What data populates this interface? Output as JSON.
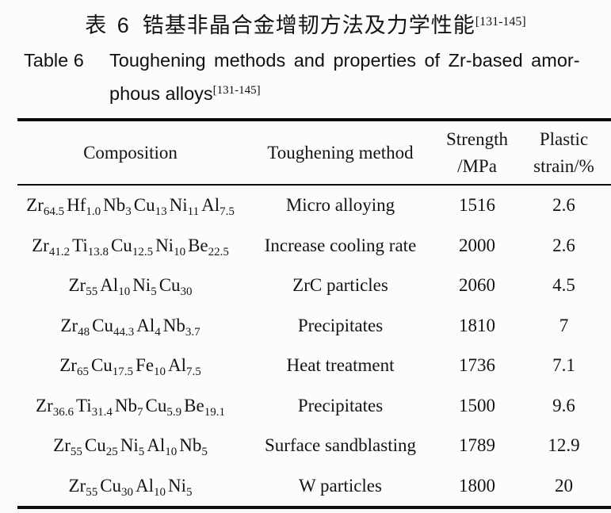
{
  "caption_zh": {
    "label": "表 6",
    "title": "锆基非晶合金增韧方法及力学性能",
    "ref": "[131-145]"
  },
  "caption_en": {
    "label": "Table 6",
    "line1": "Toughening methods and properties of Zr-based amor-",
    "line2": "phous alloys",
    "ref": "[131-145]"
  },
  "table": {
    "headers": {
      "composition": "Composition",
      "method": "Toughening method",
      "strength": [
        "Strength",
        "/MPa"
      ],
      "plastic": [
        "Plastic",
        "strain/%"
      ]
    },
    "rows": [
      {
        "composition": [
          {
            "el": "Zr",
            "sub": "64.5"
          },
          {
            "el": "Hf",
            "sub": "1.0"
          },
          {
            "el": "Nb",
            "sub": "3"
          },
          {
            "el": "Cu",
            "sub": "13"
          },
          {
            "el": "Ni",
            "sub": "11"
          },
          {
            "el": "Al",
            "sub": "7.5"
          }
        ],
        "method": "Micro alloying",
        "strength": "1516",
        "plastic": "2.6"
      },
      {
        "composition": [
          {
            "el": "Zr",
            "sub": "41.2"
          },
          {
            "el": "Ti",
            "sub": "13.8"
          },
          {
            "el": "Cu",
            "sub": "12.5"
          },
          {
            "el": "Ni",
            "sub": "10"
          },
          {
            "el": "Be",
            "sub": "22.5"
          }
        ],
        "method": "Increase cooling rate",
        "strength": "2000",
        "plastic": "2.6"
      },
      {
        "composition": [
          {
            "el": "Zr",
            "sub": "55"
          },
          {
            "el": "Al",
            "sub": "10"
          },
          {
            "el": "Ni",
            "sub": "5"
          },
          {
            "el": "Cu",
            "sub": "30"
          }
        ],
        "method": "ZrC particles",
        "strength": "2060",
        "plastic": "4.5"
      },
      {
        "composition": [
          {
            "el": "Zr",
            "sub": "48"
          },
          {
            "el": "Cu",
            "sub": "44.3"
          },
          {
            "el": "Al",
            "sub": "4"
          },
          {
            "el": "Nb",
            "sub": "3.7"
          }
        ],
        "method": "Precipitates",
        "strength": "1810",
        "plastic": "7"
      },
      {
        "composition": [
          {
            "el": "Zr",
            "sub": "65"
          },
          {
            "el": "Cu",
            "sub": "17.5"
          },
          {
            "el": "Fe",
            "sub": "10"
          },
          {
            "el": "Al",
            "sub": "7.5"
          }
        ],
        "method": "Heat treatment",
        "strength": "1736",
        "plastic": "7.1"
      },
      {
        "composition": [
          {
            "el": "Zr",
            "sub": "36.6"
          },
          {
            "el": "Ti",
            "sub": "31.4"
          },
          {
            "el": "Nb",
            "sub": "7"
          },
          {
            "el": "Cu",
            "sub": "5.9"
          },
          {
            "el": "Be",
            "sub": "19.1"
          }
        ],
        "method": "Precipitates",
        "strength": "1500",
        "plastic": "9.6"
      },
      {
        "composition": [
          {
            "el": "Zr",
            "sub": "55"
          },
          {
            "el": "Cu",
            "sub": "25"
          },
          {
            "el": "Ni",
            "sub": "5"
          },
          {
            "el": "Al",
            "sub": "10"
          },
          {
            "el": "Nb",
            "sub": "5"
          }
        ],
        "method": "Surface sandblasting",
        "strength": "1789",
        "plastic": "12.9"
      },
      {
        "composition": [
          {
            "el": "Zr",
            "sub": "55"
          },
          {
            "el": "Cu",
            "sub": "30"
          },
          {
            "el": "Al",
            "sub": "10"
          },
          {
            "el": "Ni",
            "sub": "5"
          }
        ],
        "method": "W particles",
        "strength": "1800",
        "plastic": "20"
      }
    ]
  },
  "chart_data": {
    "type": "table",
    "title": "Toughening methods and properties of Zr-based amorphous alloys",
    "columns": [
      "Composition",
      "Toughening method",
      "Strength /MPa",
      "Plastic strain/%"
    ],
    "compositions": [
      "Zr64.5Hf1.0Nb3Cu13Ni11Al7.5",
      "Zr41.2Ti13.8Cu12.5Ni10Be22.5",
      "Zr55Al10Ni5Cu30",
      "Zr48Cu44.3Al4Nb3.7",
      "Zr65Cu17.5Fe10Al7.5",
      "Zr36.6Ti31.4Nb7Cu5.9Be19.1",
      "Zr55Cu25Ni5Al10Nb5",
      "Zr55Cu30Al10Ni5"
    ],
    "methods": [
      "Micro alloying",
      "Increase cooling rate",
      "ZrC particles",
      "Precipitates",
      "Heat treatment",
      "Precipitates",
      "Surface sandblasting",
      "W particles"
    ],
    "strength_MPa": [
      1516,
      2000,
      2060,
      1810,
      1736,
      1500,
      1789,
      1800
    ],
    "plastic_strain_pct": [
      2.6,
      2.6,
      4.5,
      7,
      7.1,
      9.6,
      12.9,
      20
    ]
  },
  "colors": {
    "rule": "#0d0d0d",
    "text": "#141414",
    "background": "#fcfcfc"
  }
}
